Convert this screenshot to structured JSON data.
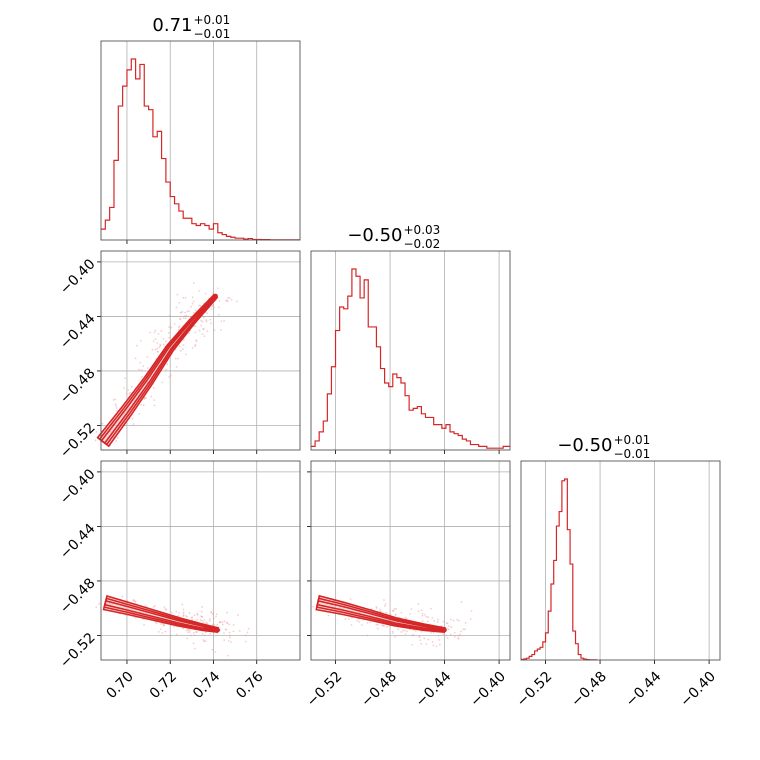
{
  "colors": {
    "line": "#d62728",
    "fill": "#f3b9ba",
    "scatter": "#e99596",
    "grid": "#b0b0b0"
  },
  "titles": [
    {
      "main": "0.71",
      "upper": "+0.01",
      "lower": "−0.01"
    },
    {
      "main": "−0.50",
      "upper": "+0.03",
      "lower": "−0.02"
    },
    {
      "main": "−0.50",
      "upper": "+0.01",
      "lower": "−0.01"
    }
  ],
  "chart_data": [
    {
      "type": "histogram",
      "panel": "param1-marginal",
      "title": "0.71 +0.01 −0.01",
      "xlim": [
        0.688,
        0.78
      ],
      "xticks": [
        0.7,
        0.72,
        0.74,
        0.76
      ],
      "grid": true,
      "series": [
        {
          "x": [
            0.688,
            0.69,
            0.692,
            0.694,
            0.696,
            0.698,
            0.7,
            0.702,
            0.704,
            0.706,
            0.708,
            0.71,
            0.712,
            0.714,
            0.716,
            0.718,
            0.72,
            0.722,
            0.724,
            0.726,
            0.728,
            0.73,
            0.732,
            0.734,
            0.736,
            0.738,
            0.74,
            0.742,
            0.744,
            0.746,
            0.748,
            0.75,
            0.752,
            0.754,
            0.756,
            0.758,
            0.76,
            0.762,
            0.764,
            0.766,
            0.768,
            0.77,
            0.772,
            0.774,
            0.776,
            0.778
          ],
          "values": [
            0.06,
            0.11,
            0.18,
            0.44,
            0.74,
            0.85,
            0.94,
            1.0,
            0.89,
            0.97,
            0.74,
            0.72,
            0.57,
            0.6,
            0.45,
            0.32,
            0.24,
            0.2,
            0.16,
            0.12,
            0.12,
            0.09,
            0.08,
            0.09,
            0.08,
            0.06,
            0.09,
            0.04,
            0.03,
            0.02,
            0.015,
            0.01,
            0.01,
            0.005,
            0.008,
            0.003,
            0.003,
            0.002,
            0.002,
            0.001,
            0.001,
            0.001,
            0.001,
            0.001,
            0.001,
            0.001
          ]
        }
      ]
    },
    {
      "type": "contour",
      "panel": "param1-vs-param2",
      "xlim": [
        0.688,
        0.78
      ],
      "ylim": [
        -0.538,
        -0.392
      ],
      "xticks": [
        0.7,
        0.72,
        0.74,
        0.76
      ],
      "yticks": [
        -0.4,
        -0.44,
        -0.48,
        -0.52
      ],
      "ytick_labels": [
        "−0.40",
        "−0.44",
        "−0.48",
        "−0.52"
      ],
      "grid": true,
      "ridge": [
        [
          0.689,
          -0.532
        ],
        [
          0.7,
          -0.509
        ],
        [
          0.71,
          -0.487
        ],
        [
          0.72,
          -0.463
        ],
        [
          0.73,
          -0.444
        ],
        [
          0.741,
          -0.425
        ]
      ]
    },
    {
      "type": "histogram",
      "panel": "param2-marginal",
      "title": "−0.50 +0.03 −0.02",
      "xlim": [
        -0.538,
        -0.392
      ],
      "xticks": [
        -0.52,
        -0.48,
        -0.44,
        -0.4
      ],
      "grid": true,
      "series": [
        {
          "x": [
            -0.538,
            -0.535,
            -0.532,
            -0.529,
            -0.526,
            -0.523,
            -0.52,
            -0.517,
            -0.514,
            -0.511,
            -0.508,
            -0.505,
            -0.502,
            -0.499,
            -0.496,
            -0.493,
            -0.49,
            -0.487,
            -0.484,
            -0.481,
            -0.478,
            -0.475,
            -0.472,
            -0.469,
            -0.466,
            -0.463,
            -0.46,
            -0.457,
            -0.454,
            -0.451,
            -0.448,
            -0.445,
            -0.442,
            -0.439,
            -0.436,
            -0.433,
            -0.43,
            -0.427,
            -0.424,
            -0.421,
            -0.418,
            -0.415,
            -0.412,
            -0.409,
            -0.406,
            -0.403,
            -0.4,
            -0.397,
            -0.394
          ],
          "values": [
            0.02,
            0.05,
            0.1,
            0.16,
            0.31,
            0.46,
            0.66,
            0.79,
            0.78,
            0.85,
            1.0,
            0.96,
            0.84,
            0.94,
            0.68,
            0.68,
            0.57,
            0.45,
            0.37,
            0.35,
            0.42,
            0.4,
            0.37,
            0.3,
            0.22,
            0.23,
            0.24,
            0.2,
            0.18,
            0.18,
            0.14,
            0.14,
            0.12,
            0.14,
            0.1,
            0.09,
            0.08,
            0.06,
            0.05,
            0.03,
            0.03,
            0.02,
            0.02,
            0.01,
            0.01,
            0.01,
            0.01,
            0.02,
            0.02
          ]
        }
      ]
    },
    {
      "type": "contour",
      "panel": "param1-vs-param3",
      "xlim": [
        0.688,
        0.78
      ],
      "ylim": [
        -0.538,
        -0.392
      ],
      "xticks": [
        0.7,
        0.72,
        0.74,
        0.76
      ],
      "xtick_labels": [
        "0.70",
        "0.72",
        "0.74",
        "0.76"
      ],
      "yticks": [
        -0.4,
        -0.44,
        -0.48,
        -0.52
      ],
      "ytick_labels": [
        "−0.40",
        "−0.44",
        "−0.48",
        "−0.52"
      ],
      "grid": true,
      "ridge": [
        [
          0.69,
          -0.496
        ],
        [
          0.7,
          -0.5
        ],
        [
          0.712,
          -0.505
        ],
        [
          0.724,
          -0.51
        ],
        [
          0.735,
          -0.514
        ],
        [
          0.742,
          -0.516
        ]
      ]
    },
    {
      "type": "contour",
      "panel": "param2-vs-param3",
      "xlim": [
        -0.538,
        -0.392
      ],
      "ylim": [
        -0.538,
        -0.392
      ],
      "xticks": [
        -0.52,
        -0.48,
        -0.44,
        -0.4
      ],
      "xtick_labels": [
        "−0.52",
        "−0.48",
        "−0.44",
        "−0.40"
      ],
      "yticks": [
        -0.4,
        -0.44,
        -0.48,
        -0.52
      ],
      "grid": true,
      "ridge": [
        [
          -0.533,
          -0.496
        ],
        [
          -0.515,
          -0.5
        ],
        [
          -0.495,
          -0.505
        ],
        [
          -0.476,
          -0.51
        ],
        [
          -0.455,
          -0.514
        ],
        [
          -0.44,
          -0.516
        ]
      ]
    },
    {
      "type": "histogram",
      "panel": "param3-marginal",
      "title": "−0.50 +0.01 −0.01",
      "xlim": [
        -0.538,
        -0.392
      ],
      "xticks": [
        -0.52,
        -0.48,
        -0.44,
        -0.4
      ],
      "xtick_labels": [
        "−0.52",
        "−0.48",
        "−0.44",
        "−0.40"
      ],
      "grid": true,
      "series": [
        {
          "x": [
            -0.538,
            -0.536,
            -0.534,
            -0.532,
            -0.53,
            -0.528,
            -0.526,
            -0.524,
            -0.522,
            -0.52,
            -0.518,
            -0.516,
            -0.514,
            -0.512,
            -0.51,
            -0.508,
            -0.506,
            -0.504,
            -0.502,
            -0.5,
            -0.498,
            -0.496,
            -0.494,
            -0.492,
            -0.49,
            -0.488,
            -0.486,
            -0.484
          ],
          "values": [
            0.003,
            0.006,
            0.01,
            0.02,
            0.03,
            0.05,
            0.06,
            0.07,
            0.1,
            0.15,
            0.27,
            0.42,
            0.55,
            0.74,
            0.82,
            0.99,
            1.0,
            0.72,
            0.53,
            0.16,
            0.09,
            0.03,
            0.01,
            0.005,
            0.002,
            0.001,
            0.001,
            0.001
          ]
        }
      ]
    }
  ]
}
